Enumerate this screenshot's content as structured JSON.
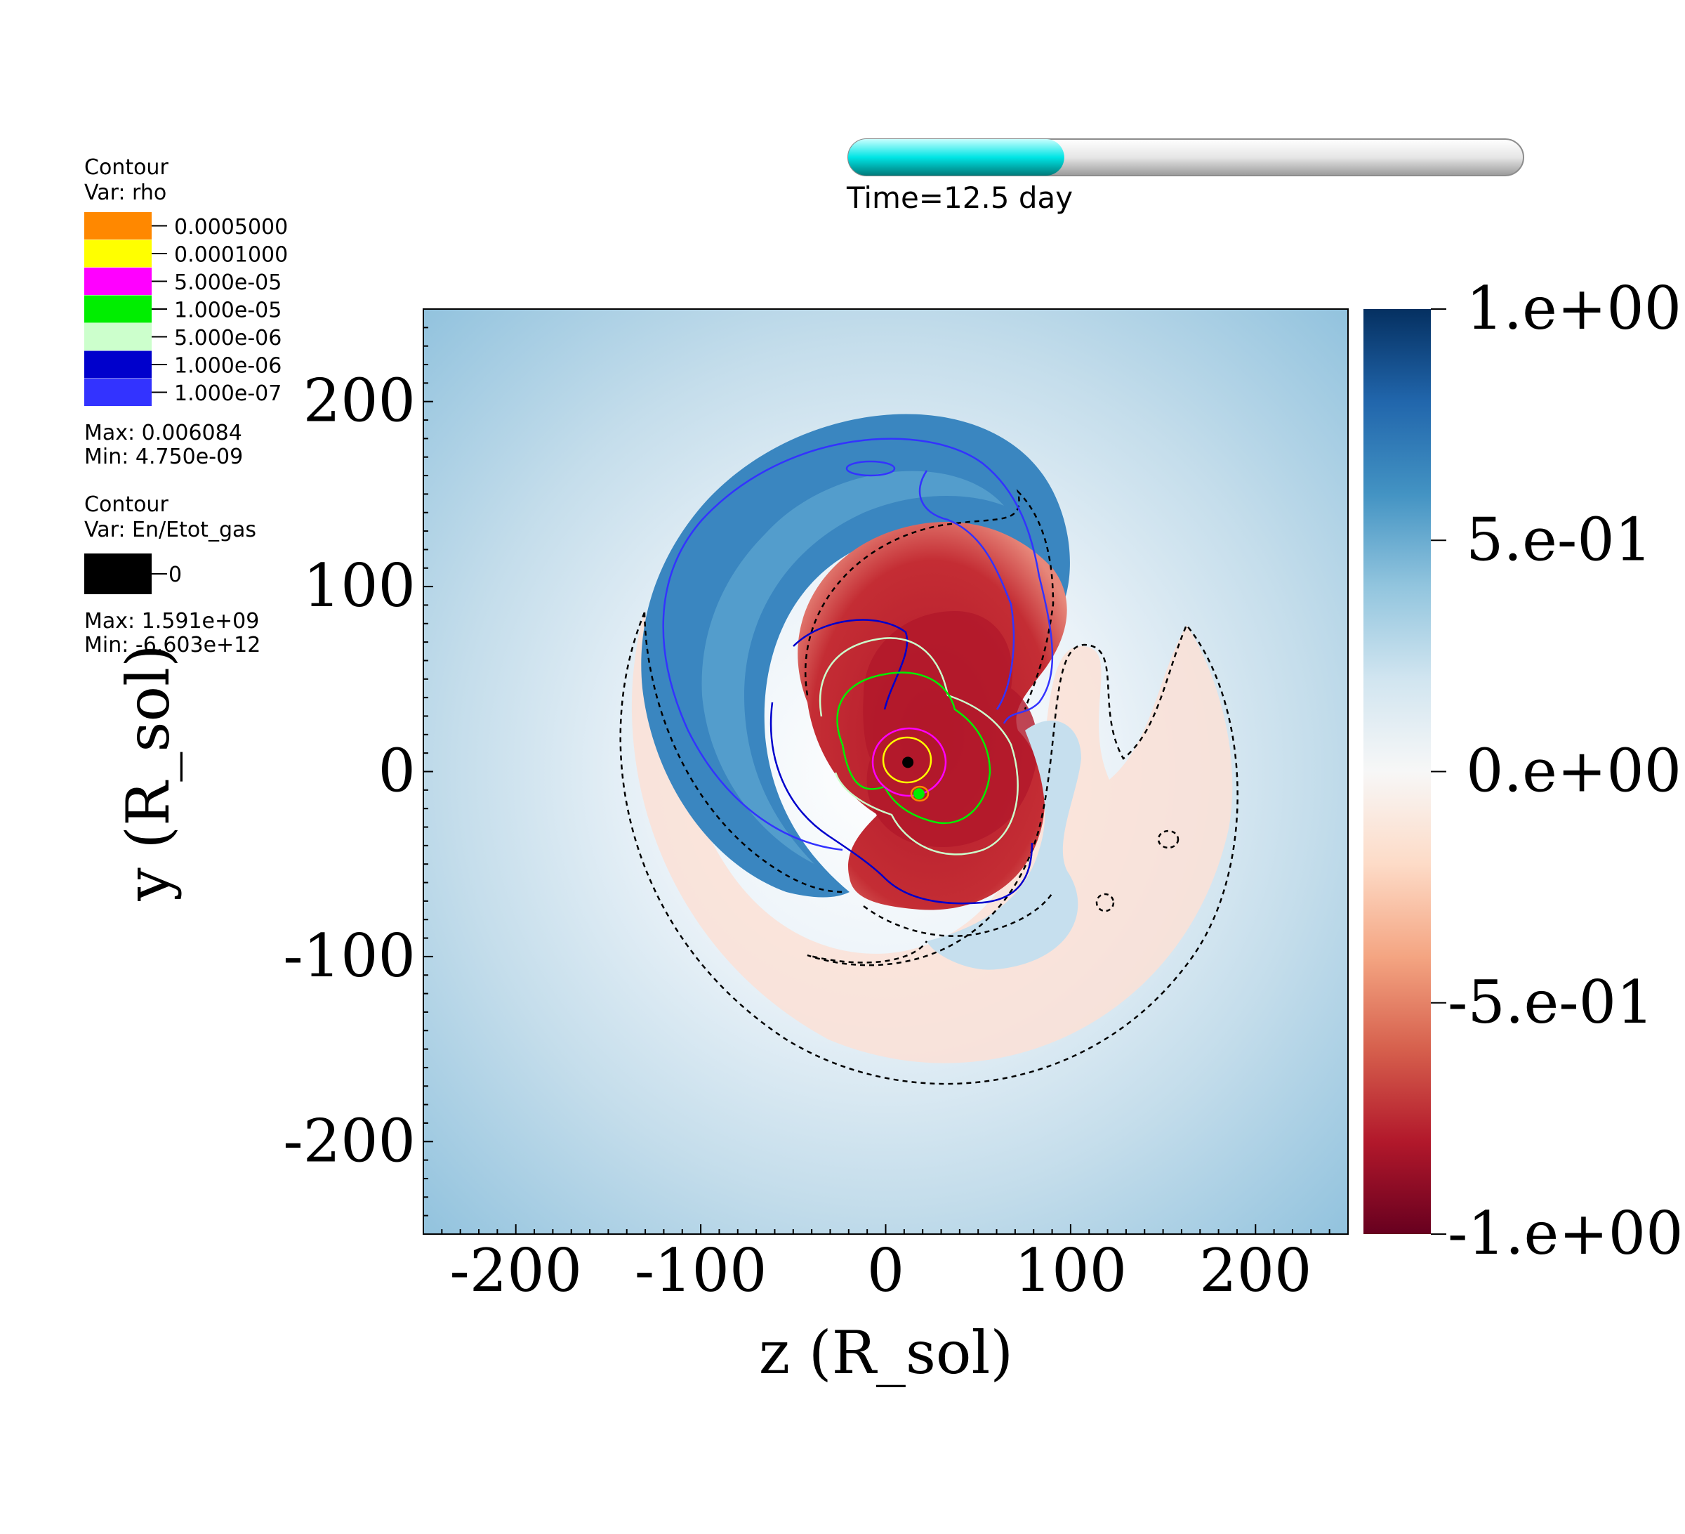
{
  "time_bar": {
    "label": "Time=12.5 day",
    "progress_fraction": 0.32,
    "fill_color": "#00e5e5",
    "track_color": "#e9e9e9"
  },
  "legend_rho": {
    "title": "Contour",
    "var": "Var: rho",
    "levels": [
      {
        "value": "0.0005000",
        "color": "#ff8800"
      },
      {
        "value": "0.0001000",
        "color": "#ffff00"
      },
      {
        "value": "5.000e-05",
        "color": "#ff00ff"
      },
      {
        "value": "1.000e-05",
        "color": "#00ee00"
      },
      {
        "value": "5.000e-06",
        "color": "#ccffcc"
      },
      {
        "value": "1.000e-06",
        "color": "#0000cc"
      },
      {
        "value": "1.000e-07",
        "color": "#3333ff"
      }
    ],
    "max": "Max:  0.006084",
    "min": "Min:  4.750e-09"
  },
  "legend_energy": {
    "title": "Contour",
    "var": "Var: En/Etot_gas",
    "levels": [
      {
        "value": "0",
        "color": "#000000"
      }
    ],
    "max": "Max:  1.591e+09",
    "min": "Min: -6.603e+12"
  },
  "chart_data": {
    "type": "heatmap",
    "xlabel": "z (R_sol)",
    "ylabel": "y (R_sol)",
    "xlim": [
      -250,
      250
    ],
    "ylim": [
      -250,
      250
    ],
    "x_ticks": [
      -200,
      -100,
      0,
      100,
      200
    ],
    "y_ticks": [
      200,
      100,
      0,
      -100,
      -200
    ],
    "colorbar": {
      "min": -1,
      "max": 1,
      "ticks": [
        "1.e+00",
        "5.e-01",
        "0.e+00",
        "-5.e-01",
        "-1.e+00"
      ],
      "colormap": [
        "#67001f",
        "#b2182b",
        "#d6604d",
        "#f4a582",
        "#fddbc7",
        "#f7f7f7",
        "#d1e5f0",
        "#92c5de",
        "#4393c3",
        "#2166ac",
        "#053061"
      ]
    },
    "markers": [
      {
        "name": "",
        "x": 12,
        "y": 5,
        "color": "#000000"
      },
      {
        "name": "",
        "x": 18,
        "y": -12,
        "color": "#00ee00"
      }
    ]
  }
}
